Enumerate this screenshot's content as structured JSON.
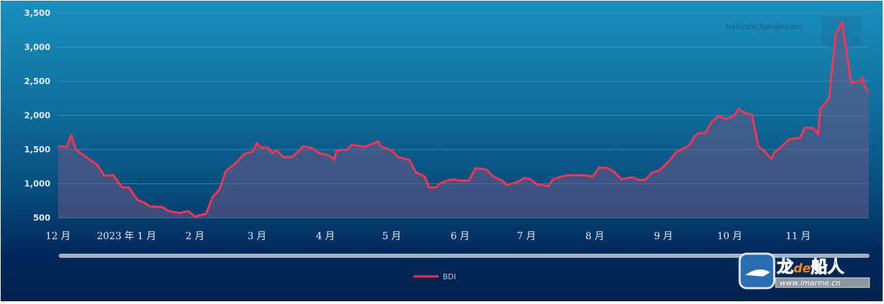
{
  "chart_data": {
    "type": "area",
    "title": "",
    "xlabel": "",
    "ylabel": "",
    "ylim": [
      500,
      3500
    ],
    "yticks": [
      500,
      1000,
      1500,
      2000,
      2500,
      3000,
      3500
    ],
    "ytick_labels": [
      "500",
      "1,000",
      "1,500",
      "2,000",
      "2,500",
      "3,000",
      "3,500"
    ],
    "xlim": [
      "2022-12-01",
      "2023-12-03"
    ],
    "xticks": [
      "2022-12-01",
      "2023-01-01",
      "2023-02-01",
      "2023-03-01",
      "2023-04-01",
      "2023-05-01",
      "2023-06-01",
      "2023-07-01",
      "2023-08-01",
      "2023-09-01",
      "2023-10-01",
      "2023-11-01"
    ],
    "xtick_labels": [
      "12 月",
      "2023 年 1 月",
      "2 月",
      "3 月",
      "4 月",
      "5 月",
      "6 月",
      "7 月",
      "8 月",
      "9 月",
      "10 月",
      "11 月"
    ],
    "grid": true,
    "legend": "bottom-center",
    "watermark": "balticexchange.com",
    "logo_text": "龙de船人 www.imarine.cn",
    "colors": {
      "line": "#ff3355",
      "fill": "#6a5a85",
      "grid": "#4c9cc2"
    },
    "series": [
      {
        "name": "BDI",
        "points": [
          [
            "2022-12-01",
            1550
          ],
          [
            "2022-12-05",
            1540
          ],
          [
            "2022-12-07",
            1712
          ],
          [
            "2022-12-09",
            1500
          ],
          [
            "2022-12-19",
            1268
          ],
          [
            "2022-12-22",
            1116
          ],
          [
            "2022-12-26",
            1126
          ],
          [
            "2022-12-30",
            945
          ],
          [
            "2023-01-02",
            945
          ],
          [
            "2023-01-06",
            762
          ],
          [
            "2023-01-09",
            722
          ],
          [
            "2023-01-12",
            662
          ],
          [
            "2023-01-17",
            662
          ],
          [
            "2023-01-20",
            600
          ],
          [
            "2023-01-25",
            570
          ],
          [
            "2023-01-29",
            600
          ],
          [
            "2023-02-01",
            520
          ],
          [
            "2023-02-06",
            560
          ],
          [
            "2023-02-09",
            807
          ],
          [
            "2023-02-12",
            910
          ],
          [
            "2023-02-15",
            1187
          ],
          [
            "2023-02-20",
            1318
          ],
          [
            "2023-02-23",
            1430
          ],
          [
            "2023-02-27",
            1470
          ],
          [
            "2023-03-01",
            1591
          ],
          [
            "2023-03-03",
            1530
          ],
          [
            "2023-03-06",
            1530
          ],
          [
            "2023-03-08",
            1450
          ],
          [
            "2023-03-10",
            1490
          ],
          [
            "2023-03-13",
            1390
          ],
          [
            "2023-03-17",
            1390
          ],
          [
            "2023-03-22",
            1550
          ],
          [
            "2023-03-26",
            1520
          ],
          [
            "2023-03-29",
            1450
          ],
          [
            "2023-04-03",
            1410
          ],
          [
            "2023-04-05",
            1350
          ],
          [
            "2023-04-06",
            1490
          ],
          [
            "2023-04-11",
            1500
          ],
          [
            "2023-04-13",
            1570
          ],
          [
            "2023-04-19",
            1540
          ],
          [
            "2023-04-25",
            1620
          ],
          [
            "2023-04-26",
            1550
          ],
          [
            "2023-05-01",
            1490
          ],
          [
            "2023-05-04",
            1390
          ],
          [
            "2023-05-09",
            1350
          ],
          [
            "2023-05-12",
            1170
          ],
          [
            "2023-05-16",
            1105
          ],
          [
            "2023-05-18",
            945
          ],
          [
            "2023-05-21",
            945
          ],
          [
            "2023-05-23",
            1005
          ],
          [
            "2023-05-26",
            1045
          ],
          [
            "2023-05-29",
            1065
          ],
          [
            "2023-06-01",
            1045
          ],
          [
            "2023-06-05",
            1045
          ],
          [
            "2023-06-08",
            1227
          ],
          [
            "2023-06-13",
            1207
          ],
          [
            "2023-06-16",
            1105
          ],
          [
            "2023-06-20",
            1045
          ],
          [
            "2023-06-22",
            985
          ],
          [
            "2023-06-25",
            1005
          ],
          [
            "2023-06-27",
            1025
          ],
          [
            "2023-06-30",
            1085
          ],
          [
            "2023-07-03",
            1065
          ],
          [
            "2023-07-06",
            985
          ],
          [
            "2023-07-11",
            965
          ],
          [
            "2023-07-13",
            1065
          ],
          [
            "2023-07-17",
            1105
          ],
          [
            "2023-07-20",
            1125
          ],
          [
            "2023-07-27",
            1125
          ],
          [
            "2023-07-31",
            1105
          ],
          [
            "2023-08-03",
            1237
          ],
          [
            "2023-08-07",
            1227
          ],
          [
            "2023-08-10",
            1167
          ],
          [
            "2023-08-13",
            1065
          ],
          [
            "2023-08-18",
            1095
          ],
          [
            "2023-08-21",
            1055
          ],
          [
            "2023-08-24",
            1060
          ],
          [
            "2023-08-27",
            1167
          ],
          [
            "2023-08-30",
            1187
          ],
          [
            "2023-09-04",
            1350
          ],
          [
            "2023-09-07",
            1470
          ],
          [
            "2023-09-11",
            1530
          ],
          [
            "2023-09-13",
            1570
          ],
          [
            "2023-09-15",
            1690
          ],
          [
            "2023-09-17",
            1742
          ],
          [
            "2023-09-20",
            1742
          ],
          [
            "2023-09-23",
            1914
          ],
          [
            "2023-09-26",
            1995
          ],
          [
            "2023-09-29",
            1944
          ],
          [
            "2023-10-03",
            1995
          ],
          [
            "2023-10-05",
            2096
          ],
          [
            "2023-10-08",
            2035
          ],
          [
            "2023-10-11",
            2015
          ],
          [
            "2023-10-14",
            1550
          ],
          [
            "2023-10-17",
            1470
          ],
          [
            "2023-10-20",
            1360
          ],
          [
            "2023-10-21",
            1450
          ],
          [
            "2023-10-25",
            1560
          ],
          [
            "2023-10-28",
            1652
          ],
          [
            "2023-11-02",
            1672
          ],
          [
            "2023-11-04",
            1823
          ],
          [
            "2023-11-08",
            1813
          ],
          [
            "2023-11-10",
            1722
          ],
          [
            "2023-11-11",
            2096
          ],
          [
            "2023-11-15",
            2247
          ],
          [
            "2023-11-18",
            3187
          ],
          [
            "2023-11-21",
            3369
          ],
          [
            "2023-11-25",
            2480
          ],
          [
            "2023-11-29",
            2500
          ],
          [
            "2023-11-30",
            2560
          ],
          [
            "2023-12-01",
            2440
          ],
          [
            "2023-12-03",
            2340
          ]
        ]
      }
    ]
  }
}
